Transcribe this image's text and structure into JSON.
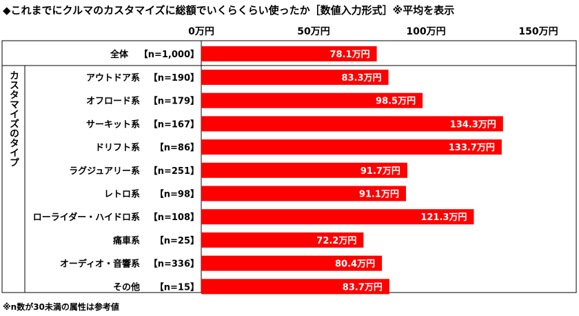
{
  "title": "◆これまでにクルマのカスタマイズに総額でいくらくらい使ったか［数値入力形式］※平均を表示",
  "footnote": "※n数が30未満の属性は参考値",
  "chart_data": {
    "type": "bar",
    "orientation": "horizontal",
    "xlim": [
      0,
      150
    ],
    "ticks": [
      "0万円",
      "50万円",
      "100万円",
      "150万円"
    ],
    "tick_values": [
      0,
      50,
      100,
      150
    ],
    "unit": "万円",
    "bar_color": "#ff0000",
    "group_label": "カスタマイズのタイプ",
    "overall": {
      "name": "全体",
      "n": "【n=1,000】",
      "value": 78.1,
      "label": "78.1万円"
    },
    "categories": [
      {
        "name": "アウトドア系",
        "n": "【n=190】",
        "value": 83.3,
        "label": "83.3万円"
      },
      {
        "name": "オフロード系",
        "n": "【n=179】",
        "value": 98.5,
        "label": "98.5万円"
      },
      {
        "name": "サーキット系",
        "n": "【n=167】",
        "value": 134.3,
        "label": "134.3万円"
      },
      {
        "name": "ドリフト系",
        "n": "【n=86】",
        "value": 133.7,
        "label": "133.7万円"
      },
      {
        "name": "ラグジュアリー系",
        "n": "【n=251】",
        "value": 91.7,
        "label": "91.7万円"
      },
      {
        "name": "レトロ系",
        "n": "【n=98】",
        "value": 91.1,
        "label": "91.1万円"
      },
      {
        "name": "ローライダー・ハイドロ系",
        "n": "【n=108】",
        "value": 121.3,
        "label": "121.3万円"
      },
      {
        "name": "痛車系",
        "n": "【n=25】",
        "value": 72.2,
        "label": "72.2万円"
      },
      {
        "name": "オーディオ・音響系",
        "n": "【n=336】",
        "value": 80.4,
        "label": "80.4万円"
      },
      {
        "name": "その他",
        "n": "【n=15】",
        "value": 83.7,
        "label": "83.7万円"
      }
    ]
  }
}
